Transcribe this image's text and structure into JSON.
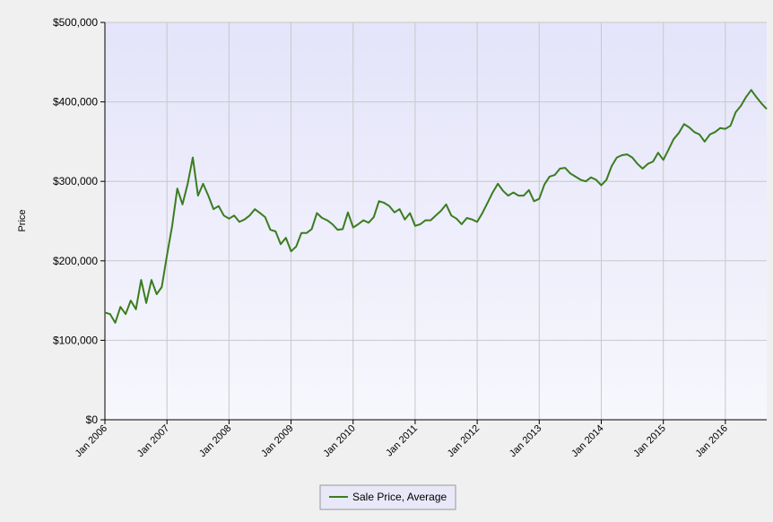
{
  "chart_data": {
    "type": "line",
    "y_label": "Price",
    "x": [
      "2006-01",
      "2006-02",
      "2006-03",
      "2006-04",
      "2006-05",
      "2006-06",
      "2006-07",
      "2006-08",
      "2006-09",
      "2006-10",
      "2006-11",
      "2006-12",
      "2007-01",
      "2007-02",
      "2007-03",
      "2007-04",
      "2007-05",
      "2007-06",
      "2007-07",
      "2007-08",
      "2007-09",
      "2007-10",
      "2007-11",
      "2007-12",
      "2008-01",
      "2008-02",
      "2008-03",
      "2008-04",
      "2008-05",
      "2008-06",
      "2008-07",
      "2008-08",
      "2008-09",
      "2008-10",
      "2008-11",
      "2008-12",
      "2009-01",
      "2009-02",
      "2009-03",
      "2009-04",
      "2009-05",
      "2009-06",
      "2009-07",
      "2009-08",
      "2009-09",
      "2009-10",
      "2009-11",
      "2009-12",
      "2010-01",
      "2010-02",
      "2010-03",
      "2010-04",
      "2010-05",
      "2010-06",
      "2010-07",
      "2010-08",
      "2010-09",
      "2010-10",
      "2010-11",
      "2010-12",
      "2011-01",
      "2011-02",
      "2011-03",
      "2011-04",
      "2011-05",
      "2011-06",
      "2011-07",
      "2011-08",
      "2011-09",
      "2011-10",
      "2011-11",
      "2011-12",
      "2012-01",
      "2012-02",
      "2012-03",
      "2012-04",
      "2012-05",
      "2012-06",
      "2012-07",
      "2012-08",
      "2012-09",
      "2012-10",
      "2012-11",
      "2012-12",
      "2013-01",
      "2013-02",
      "2013-03",
      "2013-04",
      "2013-05",
      "2013-06",
      "2013-07",
      "2013-08",
      "2013-09",
      "2013-10",
      "2013-11",
      "2013-12",
      "2014-01",
      "2014-02",
      "2014-03",
      "2014-04",
      "2014-05",
      "2014-06",
      "2014-07",
      "2014-08",
      "2014-09",
      "2014-10",
      "2014-11",
      "2014-12",
      "2015-01",
      "2015-02",
      "2015-03",
      "2015-04",
      "2015-05",
      "2015-06",
      "2015-07",
      "2015-08",
      "2015-09",
      "2015-10",
      "2015-11",
      "2015-12",
      "2016-01",
      "2016-02",
      "2016-03",
      "2016-04",
      "2016-05",
      "2016-06",
      "2016-07",
      "2016-08",
      "2016-09"
    ],
    "series": [
      {
        "name": "Sale Price, Average",
        "color": "#3a7d1e",
        "values": [
          135000,
          133000,
          122000,
          142000,
          133000,
          150000,
          139000,
          176000,
          147000,
          176000,
          158000,
          167000,
          207000,
          244000,
          291000,
          271000,
          297000,
          330000,
          282000,
          297000,
          282000,
          265000,
          269000,
          257000,
          253000,
          257000,
          249000,
          252000,
          257000,
          265000,
          260000,
          255000,
          239000,
          237000,
          221000,
          229000,
          212000,
          218000,
          235000,
          235000,
          240000,
          260000,
          254000,
          251000,
          246000,
          239000,
          240000,
          261000,
          242000,
          246000,
          251000,
          248000,
          255000,
          275000,
          273000,
          269000,
          261000,
          265000,
          252000,
          260000,
          244000,
          246000,
          251000,
          251000,
          257000,
          263000,
          271000,
          257000,
          253000,
          246000,
          254000,
          252000,
          249000,
          260000,
          273000,
          286000,
          297000,
          288000,
          282000,
          286000,
          282000,
          282000,
          289000,
          275000,
          278000,
          296000,
          306000,
          308000,
          316000,
          317000,
          310000,
          306000,
          302000,
          300000,
          305000,
          302000,
          295000,
          302000,
          319000,
          330000,
          333000,
          334000,
          330000,
          322000,
          316000,
          322000,
          325000,
          336000,
          327000,
          340000,
          353000,
          361000,
          372000,
          368000,
          362000,
          359000,
          350000,
          359000,
          362000,
          367000,
          366000,
          370000,
          387000,
          395000,
          406000,
          415000,
          406000,
          398000,
          391000
        ]
      }
    ],
    "xlim": [
      "2006-01",
      "2016-09"
    ],
    "xticks": [
      {
        "value": "2006-01",
        "label": "Jan 2006"
      },
      {
        "value": "2007-01",
        "label": "Jan 2007"
      },
      {
        "value": "2008-01",
        "label": "Jan 2008"
      },
      {
        "value": "2009-01",
        "label": "Jan 2009"
      },
      {
        "value": "2010-01",
        "label": "Jan 2010"
      },
      {
        "value": "2011-01",
        "label": "Jan 2011"
      },
      {
        "value": "2012-01",
        "label": "Jan 2012"
      },
      {
        "value": "2013-01",
        "label": "Jan 2013"
      },
      {
        "value": "2014-01",
        "label": "Jan 2014"
      },
      {
        "value": "2015-01",
        "label": "Jan 2015"
      },
      {
        "value": "2016-01",
        "label": "Jan 2016"
      }
    ],
    "ylim": [
      0,
      500000
    ],
    "yticks": [
      {
        "value": 0,
        "label": "$0"
      },
      {
        "value": 100000,
        "label": "$100,000"
      },
      {
        "value": 200000,
        "label": "$200,000"
      },
      {
        "value": 300000,
        "label": "$300,000"
      },
      {
        "value": 400000,
        "label": "$400,000"
      },
      {
        "value": 500000,
        "label": "$500,000"
      }
    ],
    "grid": true
  }
}
